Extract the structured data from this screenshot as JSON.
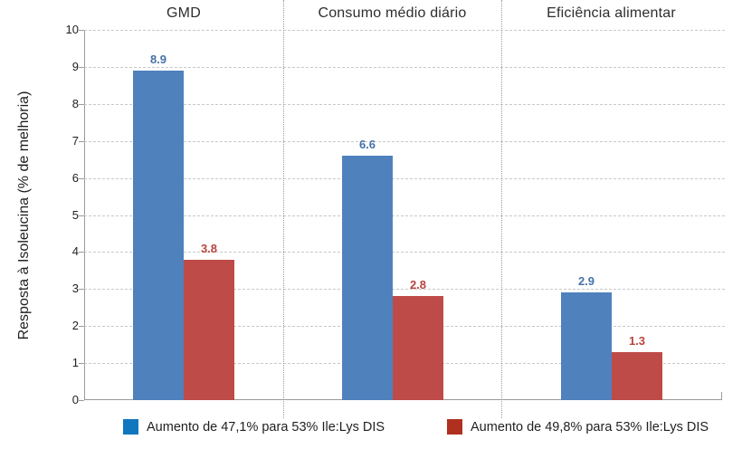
{
  "chart_data": {
    "type": "bar",
    "title": "",
    "ylabel": "Resposta à Isoleucina (% de melhoria)",
    "xlabel": "",
    "ylim": [
      0,
      10
    ],
    "yticks": [
      0,
      1,
      2,
      3,
      4,
      5,
      6,
      7,
      8,
      9,
      10
    ],
    "grid": "horizontal dashed gridlines at every integer; dotted vertical separators between category panels",
    "legend_position": "bottom",
    "categories": [
      "GMD",
      "Consumo médio diário",
      "Eficiência alimentar"
    ],
    "series": [
      {
        "name": "Aumento de 47,1% para 53% Ile:Lys DIS",
        "values": [
          8.9,
          6.6,
          2.9
        ],
        "bar_color": "#4F81BD",
        "label_color": "#4472A8",
        "legend_color": "#1077BE"
      },
      {
        "name": "Aumento de 49,8% para 53% Ile:Lys DIS",
        "values": [
          3.8,
          2.8,
          1.3
        ],
        "bar_color": "#BE4B48",
        "label_color": "#B8443F",
        "legend_color": "#B0301F"
      }
    ]
  },
  "colors": {
    "background": "#FFFFFF",
    "gridline": "#C9C9C9",
    "separator": "#9B9B9B",
    "axis": "#9B9B9B",
    "text": "#1F1F1F",
    "panel_title_text": "#2E2E2E"
  }
}
